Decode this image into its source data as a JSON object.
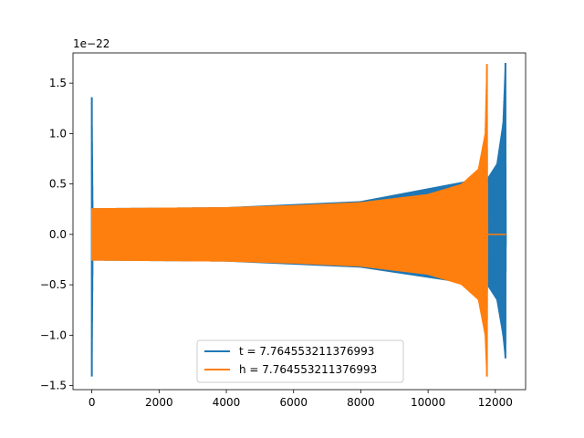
{
  "chart_data": {
    "type": "line",
    "title": "",
    "xlabel": "",
    "ylabel": "",
    "y_offset_label": "1e−22",
    "xlim": [
      -560,
      12900
    ],
    "ylim": [
      -1.54,
      1.8
    ],
    "x_ticks": [
      0,
      2000,
      4000,
      6000,
      8000,
      10000,
      12000
    ],
    "x_tick_labels": [
      "0",
      "2000",
      "4000",
      "6000",
      "8000",
      "10000",
      "12000"
    ],
    "y_ticks": [
      -1.5,
      -1.0,
      -0.5,
      0.0,
      0.5,
      1.0,
      1.5
    ],
    "y_tick_labels": [
      "−1.5",
      "−1.0",
      "−0.5",
      "0.0",
      "0.5",
      "1.0",
      "1.5"
    ],
    "grid": false,
    "legend_position": "lower center",
    "series": [
      {
        "name": "t = 7.764553211376993",
        "color": "#1f77b4",
        "envelope": [
          {
            "x": 0,
            "upper": 1.36,
            "lower": -1.41
          },
          {
            "x": 30,
            "upper": 0.26,
            "lower": -0.26
          },
          {
            "x": 4000,
            "upper": 0.27,
            "lower": -0.27
          },
          {
            "x": 8000,
            "upper": 0.33,
            "lower": -0.33
          },
          {
            "x": 11800,
            "upper": 0.57,
            "lower": -0.52
          },
          {
            "x": 12050,
            "upper": 0.7,
            "lower": -0.65
          },
          {
            "x": 12230,
            "upper": 1.1,
            "lower": -1.0
          },
          {
            "x": 12300,
            "upper": 1.7,
            "lower": -1.23
          },
          {
            "x": 12320,
            "upper": 0.0,
            "lower": 0.0
          }
        ]
      },
      {
        "name": "h = 7.764553211376993",
        "color": "#ff7f0e",
        "envelope": [
          {
            "x": 0,
            "upper": 0.26,
            "lower": -0.26
          },
          {
            "x": 2000,
            "upper": 0.265,
            "lower": -0.265
          },
          {
            "x": 4000,
            "upper": 0.27,
            "lower": -0.27
          },
          {
            "x": 6000,
            "upper": 0.29,
            "lower": -0.29
          },
          {
            "x": 8000,
            "upper": 0.32,
            "lower": -0.32
          },
          {
            "x": 10000,
            "upper": 0.4,
            "lower": -0.4
          },
          {
            "x": 11000,
            "upper": 0.5,
            "lower": -0.5
          },
          {
            "x": 11500,
            "upper": 0.65,
            "lower": -0.65
          },
          {
            "x": 11700,
            "upper": 1.0,
            "lower": -1.0
          },
          {
            "x": 11750,
            "upper": 1.69,
            "lower": -1.41
          },
          {
            "x": 11770,
            "upper": 0.0,
            "lower": 0.0
          },
          {
            "x": 12320,
            "upper": 0.0,
            "lower": 0.0
          }
        ]
      }
    ]
  }
}
